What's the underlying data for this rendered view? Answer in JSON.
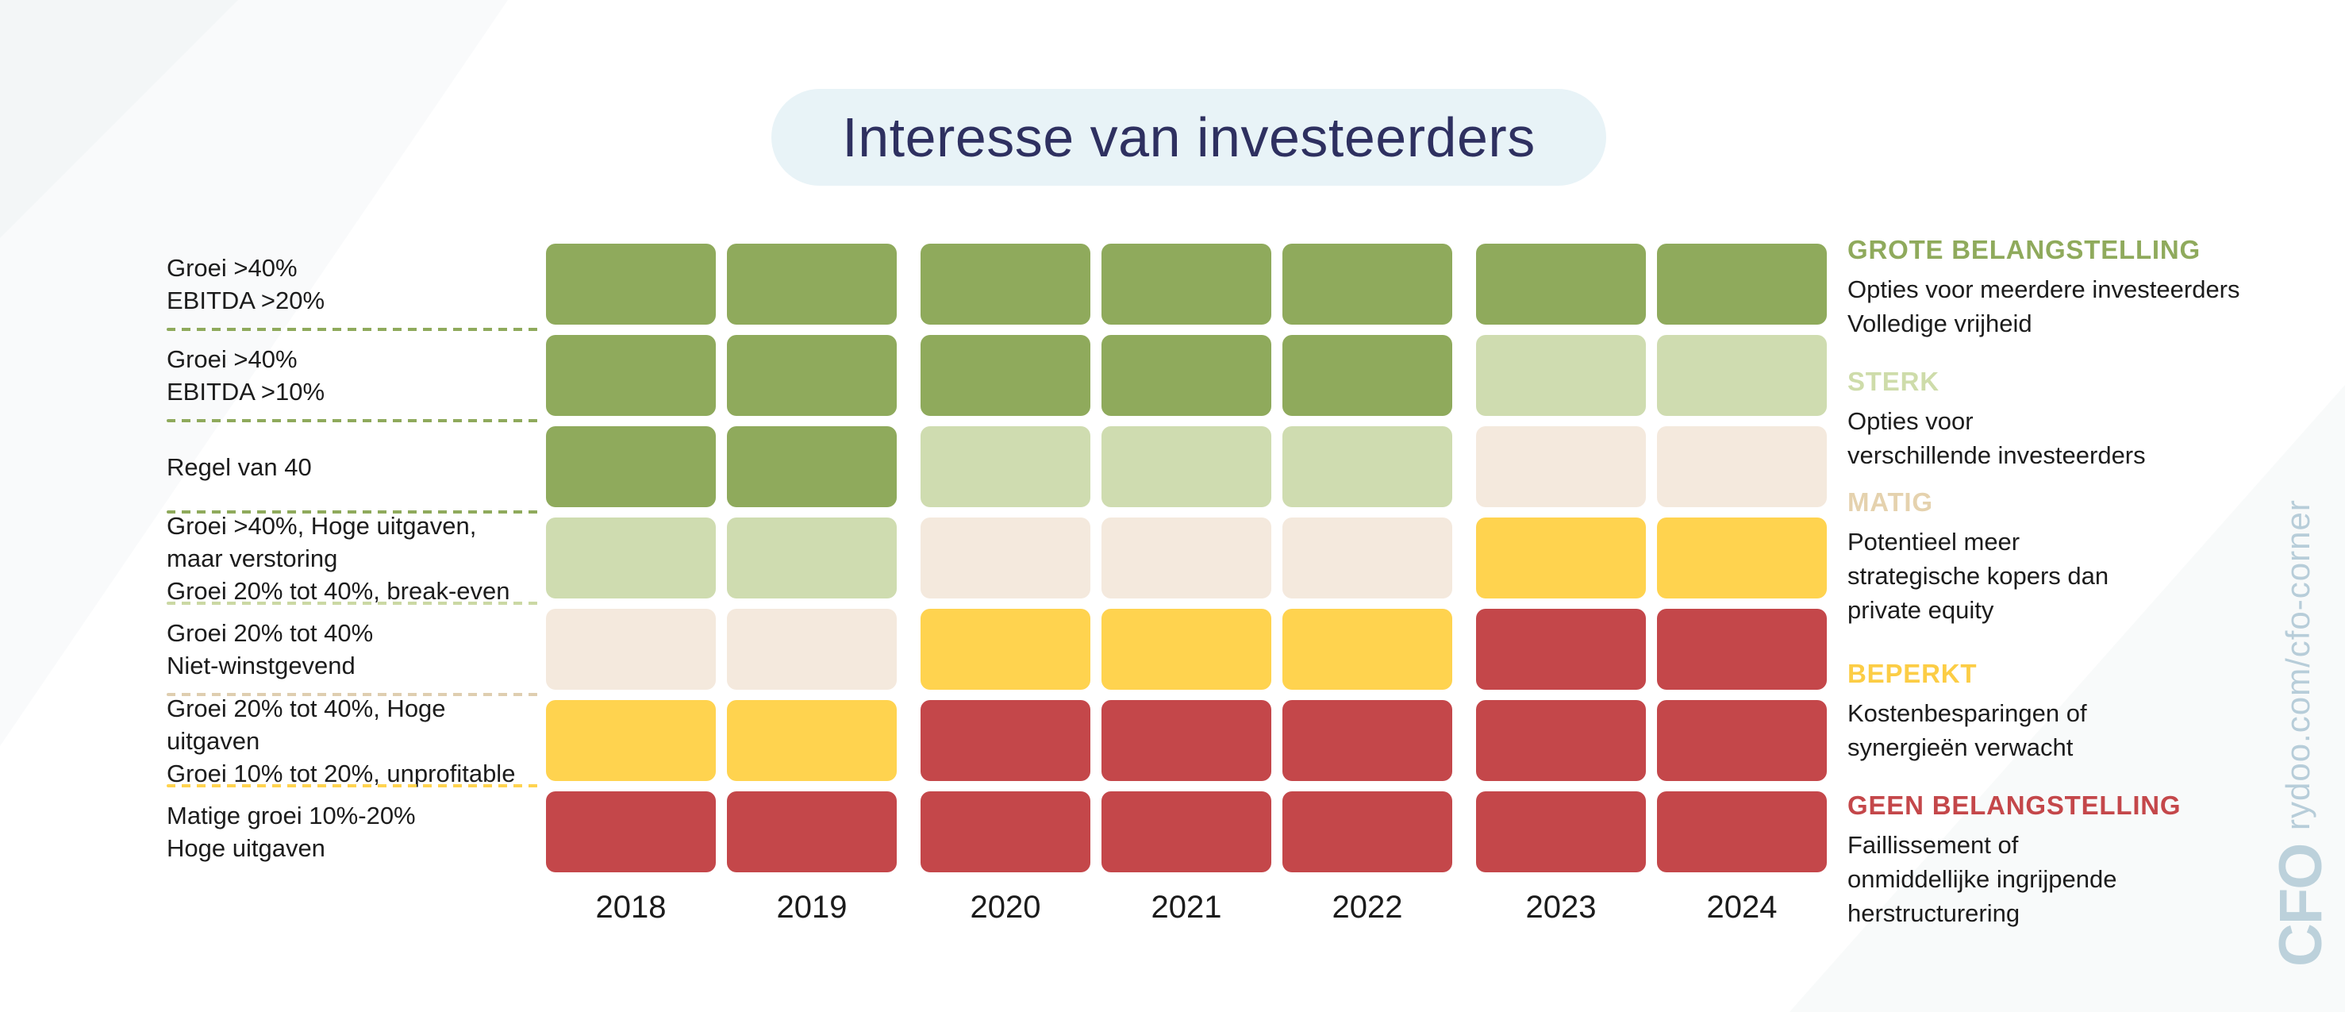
{
  "title": "Interesse van investeerders",
  "theme": {
    "title_color": "#2E3060",
    "title_bg": "#E8F3F7",
    "text_color": "#1C1C1C",
    "watermark_color": "#B7CDD9"
  },
  "chart_data": {
    "type": "heatmap",
    "title": "Interesse van investeerders",
    "x_categories": [
      "2018",
      "2019",
      "2020",
      "2021",
      "2022",
      "2023",
      "2024"
    ],
    "legend_position": "right",
    "interest_levels": [
      {
        "key": "grote",
        "label": "GROTE BELANGSTELLING",
        "color": "#8FAA5C",
        "label_color": "#8FAA5C",
        "description": [
          "Opties voor meerdere investeerders",
          "Volledige vrijheid"
        ]
      },
      {
        "key": "sterk",
        "label": "STERK",
        "color": "#CFDCB0",
        "label_color": "#CEDCAA",
        "description": [
          "Opties voor",
          "verschillende investeerders"
        ]
      },
      {
        "key": "matig",
        "label": "MATIG",
        "color": "#F4E9DD",
        "label_color": "#E5D2AE",
        "description": [
          "Potentieel meer",
          "strategische kopers dan",
          "private equity"
        ]
      },
      {
        "key": "beperkt",
        "label": "BEPERKT",
        "color": "#FFD34F",
        "label_color": "#FCCD45",
        "description": [
          "Kostenbesparingen of",
          "synergieën verwacht"
        ]
      },
      {
        "key": "geen",
        "label": "GEEN BELANGSTELLING",
        "color": "#C4474A",
        "label_color": "#C4474A",
        "description": [
          "Faillissement of",
          "onmiddellijke ingrijpende",
          "herstructurering"
        ]
      }
    ],
    "rows": [
      {
        "label_lines": [
          "Groei >40%",
          "EBITDA >20%"
        ],
        "values": [
          "grote",
          "grote",
          "grote",
          "grote",
          "grote",
          "grote",
          "grote"
        ],
        "separator_color": "#8FAA5C"
      },
      {
        "label_lines": [
          "Groei >40%",
          "EBITDA >10%"
        ],
        "values": [
          "grote",
          "grote",
          "grote",
          "grote",
          "grote",
          "sterk",
          "sterk"
        ],
        "separator_color": "#8FAA5C"
      },
      {
        "label_lines": [
          "Regel van 40"
        ],
        "values": [
          "grote",
          "grote",
          "sterk",
          "sterk",
          "sterk",
          "matig",
          "matig"
        ],
        "separator_color": "#8FAA5C"
      },
      {
        "label_lines": [
          "Groei >40%, Hoge uitgaven,",
          "maar verstoring",
          "Groei 20% tot 40%, break-even"
        ],
        "values": [
          "sterk",
          "sterk",
          "matig",
          "matig",
          "matig",
          "beperkt",
          "beperkt"
        ],
        "separator_color": "#CBD8A4"
      },
      {
        "label_lines": [
          "Groei 20% tot 40%",
          "Niet-winstgevend"
        ],
        "values": [
          "matig",
          "matig",
          "beperkt",
          "beperkt",
          "beperkt",
          "geen",
          "geen"
        ],
        "separator_color": "#DFCEB0"
      },
      {
        "label_lines": [
          "Groei 20% tot 40%, Hoge uitgaven",
          "Groei 10% tot 20%, unprofitable"
        ],
        "values": [
          "beperkt",
          "beperkt",
          "geen",
          "geen",
          "geen",
          "geen",
          "geen"
        ],
        "separator_color": "#FFD34F"
      },
      {
        "label_lines": [
          "Matige groei 10%-20%",
          "Hoge uitgaven"
        ],
        "values": [
          "geen",
          "geen",
          "geen",
          "geen",
          "geen",
          "geen",
          "geen"
        ],
        "separator_color": null
      }
    ]
  },
  "watermark": {
    "url": "rydoo.com/cfo-corner",
    "logo": "CFO"
  }
}
